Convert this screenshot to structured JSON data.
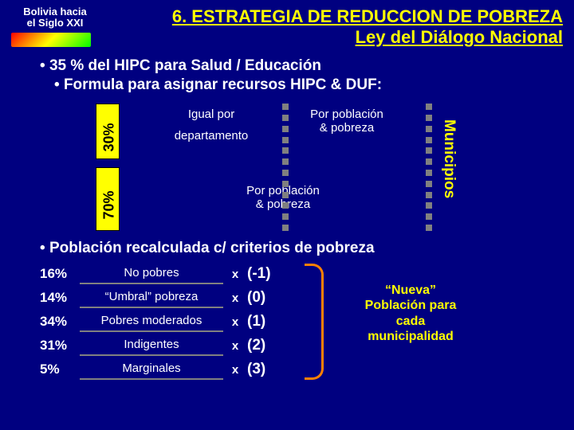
{
  "header": {
    "logo_line1": "Bolivia hacia",
    "logo_line2": "el Siglo XXI",
    "title_line1": "6. ESTRATEGIA DE REDUCCION DE POBREZA",
    "title_line2": "Ley del Diálogo Nacional"
  },
  "bullets": {
    "b1": "35 % del HIPC para Salud / Educación",
    "b2": "Formula para asignar recursos HIPC & DUF:"
  },
  "diagram": {
    "bar30_label": "30%",
    "bar70_label": "70%",
    "box1_l1": "Igual por",
    "box1_l2": "departamento",
    "box2_l1": "Por población",
    "box2_l2": "& pobreza",
    "box3_l1": "Por población",
    "box3_l2": "& pobreza",
    "municipios": "Municipios"
  },
  "section2": {
    "bullet": "Población recalculada c/ criterios de pobreza",
    "rows": [
      {
        "pct": "16%",
        "cat": "No pobres",
        "x": "x",
        "score": "(-1)"
      },
      {
        "pct": "14%",
        "cat": "“Umbral” pobreza",
        "x": "x",
        "score": "(0)"
      },
      {
        "pct": "34%",
        "cat": "Pobres moderados",
        "x": "x",
        "score": "(1)"
      },
      {
        "pct": "31%",
        "cat": "Indigentes",
        "x": "x",
        "score": "(2)"
      },
      {
        "pct": "5%",
        "cat": "Marginales",
        "x": "x",
        "score": "(3)"
      }
    ],
    "nueva_l1": "“Nueva”",
    "nueva_l2": "Población para",
    "nueva_l3": "cada",
    "nueva_l4": "municipalidad"
  }
}
